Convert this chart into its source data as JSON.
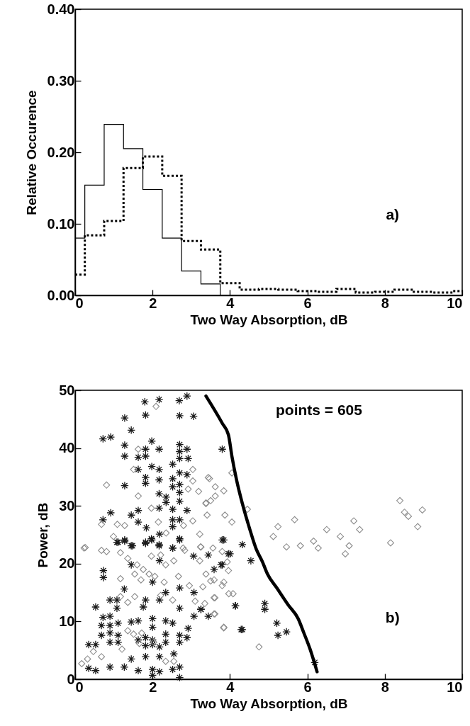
{
  "chart_data": [
    {
      "type": "histogram",
      "xlabel": "Two Way Absorption, dB",
      "ylabel": "Relative Occurence",
      "annotations": [
        "a)"
      ],
      "bins": [
        0,
        0.25,
        0.75,
        1.25,
        1.75,
        2.25,
        2.75,
        3.25,
        3.75,
        4.25,
        4.75,
        5.25,
        5.75,
        6.25,
        6.75,
        7.25,
        7.75,
        8.25,
        8.75,
        9.25,
        9.75,
        10
      ],
      "series": [
        {
          "color": "#000000",
          "line_style": "solid",
          "values": [
            0.08,
            0.154,
            0.239,
            0.205,
            0.148,
            0.08,
            0.034,
            0.016,
            0,
            0,
            0,
            0,
            0,
            0,
            0,
            0,
            0,
            0,
            0,
            0,
            0
          ]
        },
        {
          "color": "#000000",
          "line_style": "dotted",
          "values": [
            0.029,
            0.084,
            0.104,
            0.178,
            0.194,
            0.167,
            0.076,
            0.064,
            0.017,
            0.008,
            0.009,
            0.008,
            0.006,
            0.005,
            0.009,
            0.004,
            0.005,
            0.008,
            0.005,
            0.004,
            0.006
          ]
        }
      ],
      "xlim": [
        0,
        10
      ],
      "ylim": [
        0,
        0.4
      ],
      "xticks": [
        0,
        2,
        4,
        6,
        8,
        10
      ],
      "yticks": [
        {
          "value": 0,
          "label": "0.00"
        },
        {
          "value": 0.1,
          "label": "0.10"
        },
        {
          "value": 0.2,
          "label": "0.20"
        },
        {
          "value": 0.3,
          "label": "0.30"
        },
        {
          "value": 0.4,
          "label": "0.40"
        }
      ]
    },
    {
      "type": "scatter",
      "xlabel": "Two Way Absorption, dB",
      "ylabel": "Power, dB",
      "annotations": [
        "points = 605",
        "b)"
      ],
      "series": [
        {
          "type": "scatter",
          "marker": "cross",
          "color": "#1a1a1a",
          "x": [
            1.8,
            2.17,
            2.69,
            2.89,
            1.82,
            2.7,
            3.06,
            1.28,
            1.45,
            0.72,
            0.92,
            1.28,
            1.98,
            1.82,
            2.17,
            2.7,
            2.7,
            2.89,
            1.28,
            1.63,
            1.82,
            2.7,
            2.92,
            1.63,
            1.98,
            2.17,
            2.52,
            2.7,
            2.89,
            1.82,
            1.82,
            1.28,
            2.17,
            2.52,
            2.7,
            2.17,
            2.35,
            2.52,
            2.7,
            2.35,
            2.17,
            2.52,
            2.7,
            1.63,
            2.89,
            1.45,
            0.72,
            0.92,
            1.63,
            1.84,
            2.52,
            2.52,
            2.7,
            2.18,
            1.97,
            1.08,
            1.28,
            1.45,
            1.82,
            2.17,
            2.7,
            2.52,
            1.11,
            1.28,
            1.48,
            1.82,
            1.98,
            2.17,
            2.52,
            2.7,
            3.06,
            3.44,
            3.59,
            3.8,
            4.0,
            3.84,
            4.14,
            4.29,
            0.73,
            0.73,
            1.45,
            2.18,
            2.0,
            1.27,
            2.34,
            2.7,
            3.07,
            0.9,
            1.08,
            0.53,
            1.08,
            1.82,
            1.76,
            2.0,
            2.18,
            2.7,
            3.25,
            3.44,
            3.07,
            0.72,
            0.9,
            0.68,
            0.9,
            1.11,
            1.45,
            1.63,
            2.0,
            2.34,
            2.52,
            2.92,
            0.68,
            0.9,
            1.11,
            1.63,
            1.82,
            2.0,
            2.34,
            2.7,
            2.89,
            0.35,
            0.53,
            0.9,
            1.11,
            1.82,
            2.0,
            2.18,
            2.34,
            2.7,
            2.55,
            1.45,
            1.82,
            2.18,
            0.35,
            0.53,
            0.9,
            1.27,
            1.63,
            2.0,
            2.18,
            2.52,
            2.7,
            2.0,
            2.7,
            3.8,
            3.8,
            4.32,
            3.96,
            3.77,
            4.54,
            4.14,
            4.9,
            4.9,
            3.25,
            4.32,
            5.21,
            5.24,
            5.46,
            6.19
          ],
          "values": [
            48.0,
            48.4,
            48.2,
            49.0,
            45.7,
            45.6,
            45.5,
            45.2,
            43.1,
            41.6,
            41.9,
            40.5,
            41.2,
            39.8,
            39.8,
            40.6,
            39.4,
            39.8,
            38.6,
            38.4,
            38.6,
            38.2,
            38.2,
            36.3,
            36.8,
            36.3,
            37.2,
            35.7,
            35.4,
            34.9,
            33.9,
            33.5,
            34.5,
            34.7,
            33.7,
            32.1,
            31.5,
            33.3,
            32.3,
            30.6,
            29.6,
            29.4,
            30.8,
            29.2,
            29.2,
            28.4,
            27.6,
            28.8,
            27.2,
            26.2,
            27.6,
            26.4,
            27.6,
            25.1,
            24.3,
            23.7,
            23.9,
            23.1,
            23.7,
            23.3,
            24.3,
            22.7,
            23.7,
            24.1,
            23.1,
            23.5,
            24.1,
            23.1,
            22.7,
            24.1,
            21.3,
            21.5,
            19.0,
            19.8,
            21.7,
            24.1,
            12.7,
            8.6,
            18.8,
            17.6,
            19.8,
            20.5,
            16.8,
            15.6,
            15.0,
            15.8,
            15.0,
            13.7,
            13.7,
            12.5,
            12.3,
            13.7,
            12.5,
            10.5,
            13.7,
            12.3,
            12.1,
            10.9,
            10.9,
            10.7,
            10.9,
            9.3,
            9.3,
            9.7,
            9.9,
            10.1,
            9.0,
            10.1,
            9.7,
            8.8,
            7.6,
            8.0,
            7.6,
            6.8,
            7.2,
            6.8,
            7.8,
            7.6,
            7.2,
            6.0,
            6.0,
            6.4,
            6.4,
            5.8,
            6.0,
            5.6,
            6.4,
            6.4,
            4.4,
            3.5,
            3.9,
            3.9,
            1.9,
            1.5,
            2.1,
            2.1,
            1.5,
            1.7,
            1.3,
            1.7,
            2.1,
            0.7,
            0.3,
            39.8,
            24.1,
            23.3,
            21.7,
            19.8,
            20.5,
            12.7,
            13.1,
            12.1,
            12.1,
            8.6,
            9.7,
            7.6,
            8.2,
            2.9
          ]
        },
        {
          "type": "scatter",
          "marker": "diamond",
          "color": "#8c8c8c",
          "x": [
            2.09,
            1.63,
            1.51,
            0.81,
            1.63,
            1.97,
            3.04,
            3.04,
            2.92,
            3.19,
            3.38,
            3.44,
            3.41,
            3.04,
            0.68,
            1.09,
            1.28,
            0.99,
            2.15,
            2.35,
            2.8,
            3.22,
            3.24,
            0.26,
            0.68,
            2.83,
            0.23,
            0.81,
            1.17,
            1.36,
            1.6,
            1.76,
            1.97,
            2.21,
            2.34,
            2.55,
            2.79,
            3.25,
            3.22,
            3.56,
            3.8,
            3.93,
            1.17,
            1.54,
            1.7,
            1.91,
            2.06,
            2.3,
            2.67,
            2.95,
            3.3,
            3.59,
            3.8,
            3.97,
            3.59,
            3.35,
            3.59,
            3.84,
            1.17,
            1.36,
            1.54,
            2.21,
            2.52,
            3.1,
            1.51,
            1.36,
            1.66,
            1.21,
            0.68,
            0.47,
            0.32,
            0.17,
            2.34,
            2.55,
            1.72,
            2.03,
            4.05,
            3.47,
            3.62,
            3.84,
            3.62,
            3.38,
            3.5,
            3.87,
            4.05,
            4.45,
            5.24,
            5.12,
            5.67,
            5.46,
            5.82,
            6.16,
            6.28,
            6.5,
            6.85,
            7.2,
            7.35,
            7.08,
            8.15,
            8.39,
            8.51,
            8.61,
            8.97,
            8.85,
            6.98,
            3.84,
            4.08,
            3.61,
            3.61,
            3.84,
            4.75,
            3.38,
            3.5,
            3.96
          ],
          "values": [
            47.2,
            39.8,
            36.3,
            33.6,
            31.7,
            29.6,
            36.3,
            34.3,
            32.9,
            32.5,
            30.5,
            34.9,
            28.4,
            27.4,
            26.8,
            26.8,
            26.6,
            24.7,
            27.2,
            25.3,
            26.6,
            25.1,
            22.9,
            22.8,
            22.3,
            22.3,
            22.7,
            22.1,
            21.9,
            20.9,
            19.8,
            19.0,
            21.3,
            21.5,
            19.8,
            20.5,
            22.7,
            22.9,
            20.5,
            22.7,
            22.1,
            20.3,
            17.4,
            18.2,
            17.2,
            18.2,
            17.8,
            16.8,
            17.8,
            16.2,
            16.0,
            17.2,
            16.2,
            14.8,
            14.1,
            13.1,
            11.3,
            9.0,
            14.3,
            13.3,
            14.3,
            14.5,
            13.7,
            13.5,
            7.8,
            8.4,
            6.2,
            5.2,
            3.9,
            4.8,
            3.5,
            2.7,
            3.1,
            3.1,
            8.0,
            6.4,
            35.7,
            34.7,
            33.3,
            32.6,
            31.7,
            30.4,
            30.9,
            28.4,
            27.2,
            29.4,
            26.4,
            24.7,
            27.6,
            22.9,
            23.1,
            23.9,
            22.7,
            25.9,
            24.7,
            27.4,
            25.9,
            23.1,
            23.6,
            30.9,
            28.9,
            28.2,
            29.3,
            26.4,
            21.7,
            16.8,
            14.8,
            14.1,
            11.3,
            8.9,
            5.6,
            18.2,
            17.0,
            18.8
          ]
        },
        {
          "type": "line",
          "color": "#000000",
          "marker": "none",
          "x": [
            3.38,
            3.8,
            3.96,
            4.05,
            4.17,
            4.32,
            4.51,
            4.68,
            4.84,
            4.97,
            5.21,
            5.5,
            5.76,
            5.91,
            6.07,
            6.25
          ],
          "values": [
            49.0,
            44.3,
            42.3,
            38.6,
            34.5,
            30.4,
            26.0,
            22.5,
            20.3,
            18.2,
            15.8,
            12.9,
            10.5,
            8.0,
            5.2,
            1.3
          ]
        }
      ],
      "xlim": [
        0,
        10
      ],
      "ylim": [
        0,
        50
      ],
      "xticks": [
        0,
        2,
        4,
        6,
        8,
        10
      ],
      "yticks": [
        0,
        10,
        20,
        30,
        40,
        50
      ]
    }
  ]
}
